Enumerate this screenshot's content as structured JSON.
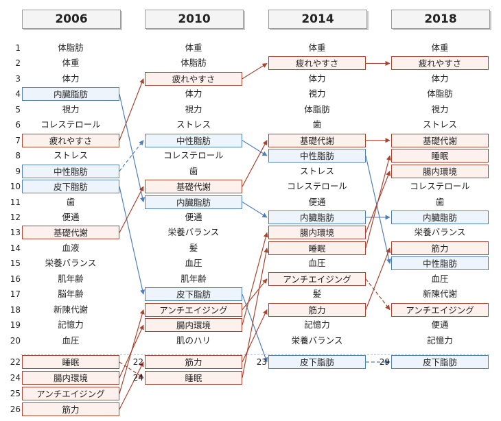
{
  "columns": [
    {
      "year": "2006",
      "items": [
        {
          "rank": "1",
          "label": "体脂肪",
          "style": "plain"
        },
        {
          "rank": "2",
          "label": "体重",
          "style": "plain"
        },
        {
          "rank": "3",
          "label": "体力",
          "style": "plain"
        },
        {
          "rank": "4",
          "label": "内臓脂肪",
          "style": "blue"
        },
        {
          "rank": "5",
          "label": "視力",
          "style": "plain"
        },
        {
          "rank": "6",
          "label": "コレステロール",
          "style": "plain"
        },
        {
          "rank": "7",
          "label": "疲れやすさ",
          "style": "red"
        },
        {
          "rank": "8",
          "label": "ストレス",
          "style": "plain"
        },
        {
          "rank": "9",
          "label": "中性脂肪",
          "style": "blue"
        },
        {
          "rank": "10",
          "label": "皮下脂肪",
          "style": "blue"
        },
        {
          "rank": "11",
          "label": "歯",
          "style": "plain"
        },
        {
          "rank": "12",
          "label": "便通",
          "style": "plain"
        },
        {
          "rank": "13",
          "label": "基礎代謝",
          "style": "red"
        },
        {
          "rank": "14",
          "label": "血液",
          "style": "plain"
        },
        {
          "rank": "15",
          "label": "栄養バランス",
          "style": "plain"
        },
        {
          "rank": "16",
          "label": "肌年齢",
          "style": "plain"
        },
        {
          "rank": "17",
          "label": "脳年齢",
          "style": "plain"
        },
        {
          "rank": "18",
          "label": "新陳代謝",
          "style": "plain"
        },
        {
          "rank": "19",
          "label": "記憶力",
          "style": "plain"
        },
        {
          "rank": "20",
          "label": "血圧",
          "style": "plain"
        },
        {
          "rank": "22",
          "label": "睡眠",
          "style": "red"
        },
        {
          "rank": "24",
          "label": "腸内環境",
          "style": "red"
        },
        {
          "rank": "25",
          "label": "アンチエイジング",
          "style": "red"
        },
        {
          "rank": "26",
          "label": "筋力",
          "style": "red"
        }
      ]
    },
    {
      "year": "2010",
      "items": [
        {
          "rank": "",
          "label": "体重",
          "style": "plain"
        },
        {
          "rank": "",
          "label": "体脂肪",
          "style": "plain"
        },
        {
          "rank": "",
          "label": "疲れやすさ",
          "style": "red"
        },
        {
          "rank": "",
          "label": "体力",
          "style": "plain"
        },
        {
          "rank": "",
          "label": "視力",
          "style": "plain"
        },
        {
          "rank": "",
          "label": "ストレス",
          "style": "plain"
        },
        {
          "rank": "",
          "label": "中性脂肪",
          "style": "blue"
        },
        {
          "rank": "",
          "label": "コレステロール",
          "style": "plain"
        },
        {
          "rank": "",
          "label": "歯",
          "style": "plain"
        },
        {
          "rank": "",
          "label": "基礎代謝",
          "style": "red"
        },
        {
          "rank": "",
          "label": "内臓脂肪",
          "style": "blue"
        },
        {
          "rank": "",
          "label": "便通",
          "style": "plain"
        },
        {
          "rank": "",
          "label": "栄養バランス",
          "style": "plain"
        },
        {
          "rank": "",
          "label": "髪",
          "style": "plain"
        },
        {
          "rank": "",
          "label": "血圧",
          "style": "plain"
        },
        {
          "rank": "",
          "label": "肌年齢",
          "style": "plain"
        },
        {
          "rank": "",
          "label": "皮下脂肪",
          "style": "blue"
        },
        {
          "rank": "",
          "label": "アンチエイジング",
          "style": "red"
        },
        {
          "rank": "",
          "label": "腸内環境",
          "style": "red"
        },
        {
          "rank": "",
          "label": "肌のハリ",
          "style": "plain"
        },
        {
          "rank": "22",
          "label": "筋力",
          "style": "red"
        },
        {
          "rank": "24",
          "label": "睡眠",
          "style": "red"
        }
      ]
    },
    {
      "year": "2014",
      "items": [
        {
          "rank": "",
          "label": "体重",
          "style": "plain"
        },
        {
          "rank": "",
          "label": "疲れやすさ",
          "style": "red"
        },
        {
          "rank": "",
          "label": "体力",
          "style": "plain"
        },
        {
          "rank": "",
          "label": "視力",
          "style": "plain"
        },
        {
          "rank": "",
          "label": "体脂肪",
          "style": "plain"
        },
        {
          "rank": "",
          "label": "歯",
          "style": "plain"
        },
        {
          "rank": "",
          "label": "基礎代謝",
          "style": "red"
        },
        {
          "rank": "",
          "label": "中性脂肪",
          "style": "blue"
        },
        {
          "rank": "",
          "label": "ストレス",
          "style": "plain"
        },
        {
          "rank": "",
          "label": "コレステロール",
          "style": "plain"
        },
        {
          "rank": "",
          "label": "便通",
          "style": "plain"
        },
        {
          "rank": "",
          "label": "内臓脂肪",
          "style": "blue"
        },
        {
          "rank": "",
          "label": "腸内環境",
          "style": "red"
        },
        {
          "rank": "",
          "label": "睡眠",
          "style": "red"
        },
        {
          "rank": "",
          "label": "血圧",
          "style": "plain"
        },
        {
          "rank": "",
          "label": "アンチエイジング",
          "style": "red"
        },
        {
          "rank": "",
          "label": "髪",
          "style": "plain"
        },
        {
          "rank": "",
          "label": "筋力",
          "style": "red"
        },
        {
          "rank": "",
          "label": "記憶力",
          "style": "plain"
        },
        {
          "rank": "",
          "label": "栄養バランス",
          "style": "plain"
        },
        {
          "rank": "23",
          "label": "皮下脂肪",
          "style": "blue"
        }
      ]
    },
    {
      "year": "2018",
      "items": [
        {
          "rank": "",
          "label": "体重",
          "style": "plain"
        },
        {
          "rank": "",
          "label": "疲れやすさ",
          "style": "red"
        },
        {
          "rank": "",
          "label": "体力",
          "style": "plain"
        },
        {
          "rank": "",
          "label": "体脂肪",
          "style": "plain"
        },
        {
          "rank": "",
          "label": "視力",
          "style": "plain"
        },
        {
          "rank": "",
          "label": "ストレス",
          "style": "plain"
        },
        {
          "rank": "",
          "label": "基礎代謝",
          "style": "red"
        },
        {
          "rank": "",
          "label": "睡眠",
          "style": "red"
        },
        {
          "rank": "",
          "label": "腸内環境",
          "style": "red"
        },
        {
          "rank": "",
          "label": "コレステロール",
          "style": "plain"
        },
        {
          "rank": "",
          "label": "歯",
          "style": "plain"
        },
        {
          "rank": "",
          "label": "内臓脂肪",
          "style": "blue"
        },
        {
          "rank": "",
          "label": "栄養バランス",
          "style": "plain"
        },
        {
          "rank": "",
          "label": "筋力",
          "style": "red"
        },
        {
          "rank": "",
          "label": "中性脂肪",
          "style": "blue"
        },
        {
          "rank": "",
          "label": "血圧",
          "style": "plain"
        },
        {
          "rank": "",
          "label": "新陳代謝",
          "style": "plain"
        },
        {
          "rank": "",
          "label": "アンチエイジング",
          "style": "red"
        },
        {
          "rank": "",
          "label": "便通",
          "style": "plain"
        },
        {
          "rank": "",
          "label": "記憶力",
          "style": "plain"
        },
        {
          "rank": "29",
          "label": "皮下脂肪",
          "style": "blue"
        }
      ]
    }
  ],
  "connectors": [
    {
      "from": [
        0,
        3
      ],
      "to": [
        1,
        10
      ],
      "color": "blue",
      "dashed": false
    },
    {
      "from": [
        0,
        6
      ],
      "to": [
        1,
        2
      ],
      "color": "red",
      "dashed": false
    },
    {
      "from": [
        0,
        8
      ],
      "to": [
        1,
        6
      ],
      "color": "blue",
      "dashed": true
    },
    {
      "from": [
        0,
        9
      ],
      "to": [
        1,
        16
      ],
      "color": "blue",
      "dashed": false
    },
    {
      "from": [
        0,
        12
      ],
      "to": [
        1,
        9
      ],
      "color": "red",
      "dashed": false
    },
    {
      "from": [
        0,
        20
      ],
      "to": [
        1,
        21
      ],
      "color": "red",
      "dashed": true
    },
    {
      "from": [
        0,
        21
      ],
      "to": [
        1,
        18
      ],
      "color": "red",
      "dashed": false
    },
    {
      "from": [
        0,
        22
      ],
      "to": [
        1,
        17
      ],
      "color": "red",
      "dashed": false
    },
    {
      "from": [
        0,
        23
      ],
      "to": [
        1,
        20
      ],
      "color": "red",
      "dashed": false
    },
    {
      "from": [
        1,
        2
      ],
      "to": [
        2,
        1
      ],
      "color": "red",
      "dashed": false
    },
    {
      "from": [
        1,
        6
      ],
      "to": [
        2,
        7
      ],
      "color": "blue",
      "dashed": false
    },
    {
      "from": [
        1,
        9
      ],
      "to": [
        2,
        6
      ],
      "color": "red",
      "dashed": false
    },
    {
      "from": [
        1,
        10
      ],
      "to": [
        2,
        11
      ],
      "color": "blue",
      "dashed": false
    },
    {
      "from": [
        1,
        16
      ],
      "to": [
        2,
        20
      ],
      "color": "blue",
      "dashed": false
    },
    {
      "from": [
        1,
        17
      ],
      "to": [
        2,
        15
      ],
      "color": "red",
      "dashed": false
    },
    {
      "from": [
        1,
        18
      ],
      "to": [
        2,
        12
      ],
      "color": "red",
      "dashed": false
    },
    {
      "from": [
        1,
        20
      ],
      "to": [
        2,
        17
      ],
      "color": "red",
      "dashed": false
    },
    {
      "from": [
        1,
        21
      ],
      "to": [
        2,
        13
      ],
      "color": "red",
      "dashed": false
    },
    {
      "from": [
        2,
        1
      ],
      "to": [
        3,
        1
      ],
      "color": "red",
      "dashed": false
    },
    {
      "from": [
        2,
        6
      ],
      "to": [
        3,
        6
      ],
      "color": "red",
      "dashed": false
    },
    {
      "from": [
        2,
        7
      ],
      "to": [
        3,
        14
      ],
      "color": "blue",
      "dashed": false
    },
    {
      "from": [
        2,
        11
      ],
      "to": [
        3,
        11
      ],
      "color": "blue",
      "dashed": false
    },
    {
      "from": [
        2,
        12
      ],
      "to": [
        3,
        8
      ],
      "color": "red",
      "dashed": false
    },
    {
      "from": [
        2,
        13
      ],
      "to": [
        3,
        7
      ],
      "color": "red",
      "dashed": false
    },
    {
      "from": [
        2,
        15
      ],
      "to": [
        3,
        17
      ],
      "color": "red",
      "dashed": true
    },
    {
      "from": [
        2,
        17
      ],
      "to": [
        3,
        13
      ],
      "color": "red",
      "dashed": false
    },
    {
      "from": [
        2,
        20
      ],
      "to": [
        3,
        20
      ],
      "color": "blue",
      "dashed": true
    }
  ],
  "colors": {
    "red": "#a84430",
    "blue": "#4f7fb8"
  }
}
